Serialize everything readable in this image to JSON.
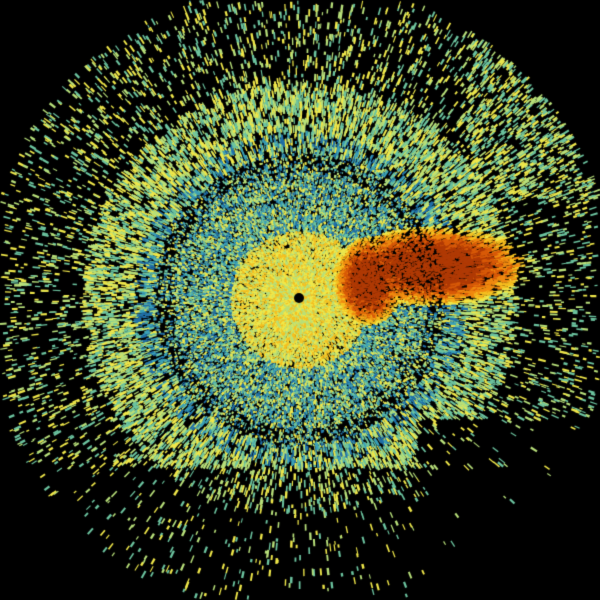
{
  "image": {
    "kind": "radar-reflectivity-sweep",
    "background_color": "#000000",
    "palette": [
      "#1f6fa8",
      "#3aa0b8",
      "#6cc4a0",
      "#b8e07a",
      "#f0e84a",
      "#f5c020",
      "#f08a10",
      "#d85a08",
      "#b03a05"
    ],
    "radar_site_marker_color": "#000000"
  }
}
